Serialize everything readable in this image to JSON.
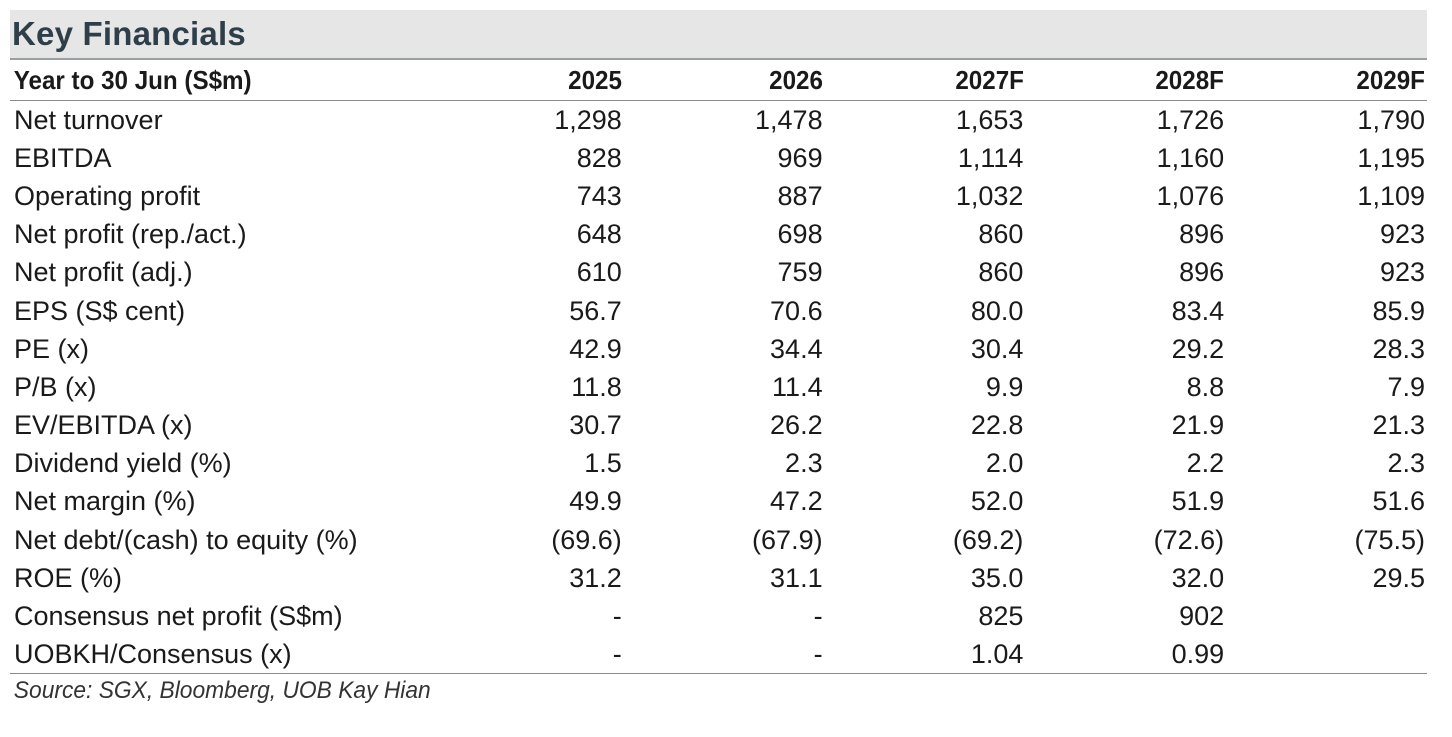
{
  "title": "Key Financials",
  "header": [
    "Year to 30 Jun (S$m)",
    "2025",
    "2026",
    "2027F",
    "2028F",
    "2029F"
  ],
  "rows": [
    {
      "label": "Net turnover",
      "values": [
        "1,298",
        "1,478",
        "1,653",
        "1,726",
        "1,790"
      ]
    },
    {
      "label": "EBITDA",
      "values": [
        "828",
        "969",
        "1,114",
        "1,160",
        "1,195"
      ]
    },
    {
      "label": "Operating profit",
      "values": [
        "743",
        "887",
        "1,032",
        "1,076",
        "1,109"
      ]
    },
    {
      "label": "Net profit (rep./act.)",
      "values": [
        "648",
        "698",
        "860",
        "896",
        "923"
      ]
    },
    {
      "label": "Net profit (adj.)",
      "values": [
        "610",
        "759",
        "860",
        "896",
        "923"
      ]
    },
    {
      "label": "EPS (S$ cent)",
      "values": [
        "56.7",
        "70.6",
        "80.0",
        "83.4",
        "85.9"
      ]
    },
    {
      "label": "PE (x)",
      "values": [
        "42.9",
        "34.4",
        "30.4",
        "29.2",
        "28.3"
      ]
    },
    {
      "label": "P/B (x)",
      "values": [
        "11.8",
        "11.4",
        "9.9",
        "8.8",
        "7.9"
      ]
    },
    {
      "label": "EV/EBITDA (x)",
      "values": [
        "30.7",
        "26.2",
        "22.8",
        "21.9",
        "21.3"
      ]
    },
    {
      "label": "Dividend yield (%)",
      "values": [
        "1.5",
        "2.3",
        "2.0",
        "2.2",
        "2.3"
      ]
    },
    {
      "label": "Net margin (%)",
      "values": [
        "49.9",
        "47.2",
        "52.0",
        "51.9",
        "51.6"
      ]
    },
    {
      "label": "Net debt/(cash) to equity (%)",
      "values": [
        "(69.6)",
        "(67.9)",
        "(69.2)",
        "(72.6)",
        "(75.5)"
      ]
    },
    {
      "label": "ROE (%)",
      "values": [
        "31.2",
        "31.1",
        "35.0",
        "32.0",
        "29.5"
      ]
    },
    {
      "label": "Consensus net profit (S$m)",
      "values": [
        "-",
        "-",
        "825",
        "902",
        ""
      ]
    },
    {
      "label": "UOBKH/Consensus (x)",
      "values": [
        "-",
        "-",
        "1.04",
        "0.99",
        ""
      ]
    }
  ],
  "source": "Source: SGX, Bloomberg, UOB Kay Hian",
  "colors": {
    "title_bg": "#e6e6e6",
    "title_text": "#2e3f4a",
    "rule": "#8a8a8a"
  }
}
